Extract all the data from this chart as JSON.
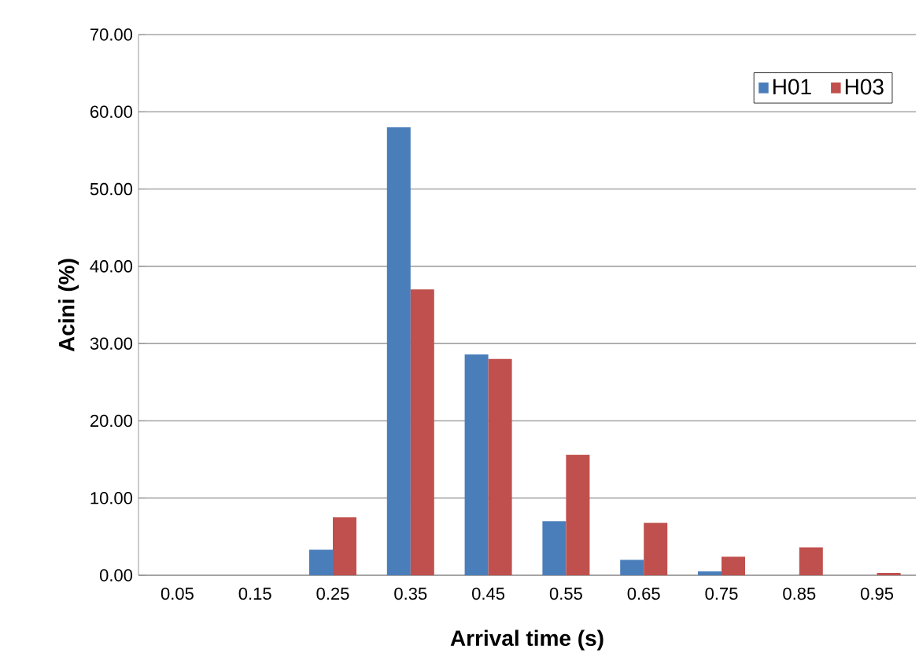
{
  "chart_data": {
    "type": "bar",
    "xlabel": "Arrival time (s)",
    "ylabel": "Acini (%)",
    "categories": [
      "0.05",
      "0.15",
      "0.25",
      "0.35",
      "0.45",
      "0.55",
      "0.65",
      "0.75",
      "0.85",
      "0.95"
    ],
    "series": [
      {
        "name": "H01",
        "color": "#4a7ebb",
        "values": [
          0,
          0,
          3.3,
          58,
          28.6,
          7,
          2,
          0.5,
          0,
          0
        ]
      },
      {
        "name": "H03",
        "color": "#c0504d",
        "values": [
          0,
          0,
          7.5,
          37,
          28,
          15.6,
          6.8,
          2.4,
          3.6,
          0.3
        ]
      }
    ],
    "ylim": [
      0,
      70
    ],
    "yticks": [
      {
        "value": 0,
        "label": "0.00"
      },
      {
        "value": 10,
        "label": "10.00"
      },
      {
        "value": 20,
        "label": "20.00"
      },
      {
        "value": 30,
        "label": "30.00"
      },
      {
        "value": 40,
        "label": "40.00"
      },
      {
        "value": 50,
        "label": "50.00"
      },
      {
        "value": 60,
        "label": "60.00"
      },
      {
        "value": 70,
        "label": "70.00"
      }
    ],
    "grid": "y",
    "legend": "top right"
  }
}
